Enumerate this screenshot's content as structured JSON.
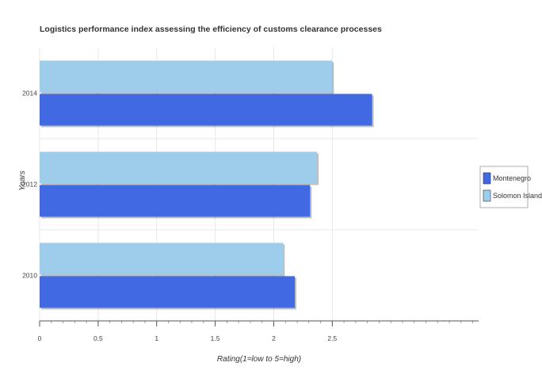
{
  "chart_data": {
    "type": "bar",
    "orientation": "horizontal",
    "title": "Logistics performance index assessing the efficiency of customs clearance processes",
    "xlabel": "Rating(1=low to 5=high)",
    "ylabel": "Years",
    "xlim": [
      0,
      3.75
    ],
    "xticks": [
      "0",
      "0.5",
      "1",
      "1.5",
      "2",
      "2.5"
    ],
    "categories": [
      "2014",
      "2012",
      "2010"
    ],
    "series": [
      {
        "name": "Montenegro",
        "color": "#4169E1",
        "values": [
          2.84,
          2.31,
          2.18
        ]
      },
      {
        "name": "Solomon Islands",
        "color": "#9DCDEB",
        "values": [
          2.5,
          2.37,
          2.08
        ]
      }
    ],
    "legend_position": "right",
    "grid": true
  }
}
